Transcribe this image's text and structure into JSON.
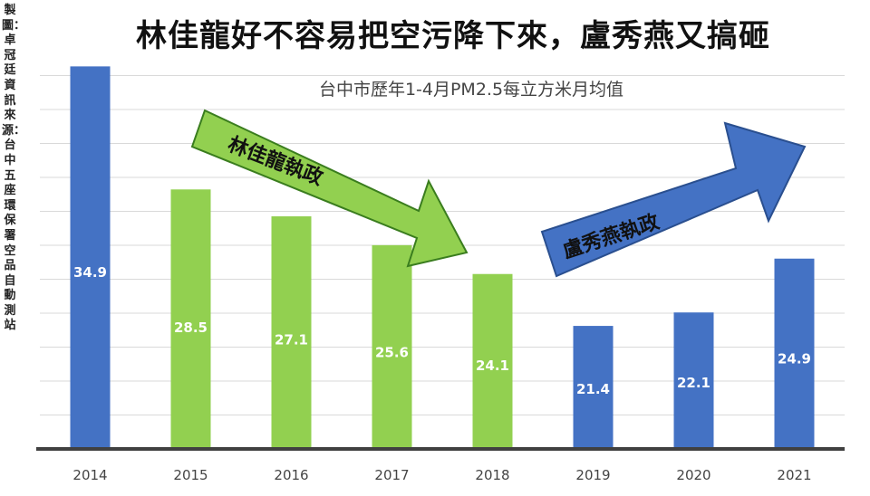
{
  "title": "林佳龍好不容易把空污降下來，盧秀燕又搞砸",
  "subtitle": "台中市歷年1-4月PM2.5每立方米月均值",
  "side_credit": "製圖：卓冠廷　資訊來源：台中五座環保署空品自動測站",
  "arrows": {
    "left": "林佳龍執政",
    "right": "盧秀燕執政"
  },
  "colors": {
    "blue": "#4472C4",
    "green": "#92D050",
    "grid": "#d9d9d9",
    "axis": "#404040"
  },
  "chart_data": {
    "type": "bar",
    "title": "林佳龍好不容易把空污降下來，盧秀燕又搞砸",
    "subtitle": "台中市歷年1-4月PM2.5每立方米月均值",
    "categories": [
      "2014",
      "2015",
      "2016",
      "2017",
      "2018",
      "2019",
      "2020",
      "2021"
    ],
    "values": [
      34.9,
      28.5,
      27.1,
      25.6,
      24.1,
      21.4,
      22.1,
      24.9
    ],
    "labels": [
      "34.9",
      "28.5",
      "27.1",
      "25.6",
      "24.1",
      "21.4",
      "22.1",
      "24.9"
    ],
    "bar_colors": [
      "#4472C4",
      "#92D050",
      "#92D050",
      "#92D050",
      "#92D050",
      "#4472C4",
      "#4472C4",
      "#4472C4"
    ],
    "ylim": [
      15,
      36
    ],
    "grid": true,
    "legend": "none"
  }
}
